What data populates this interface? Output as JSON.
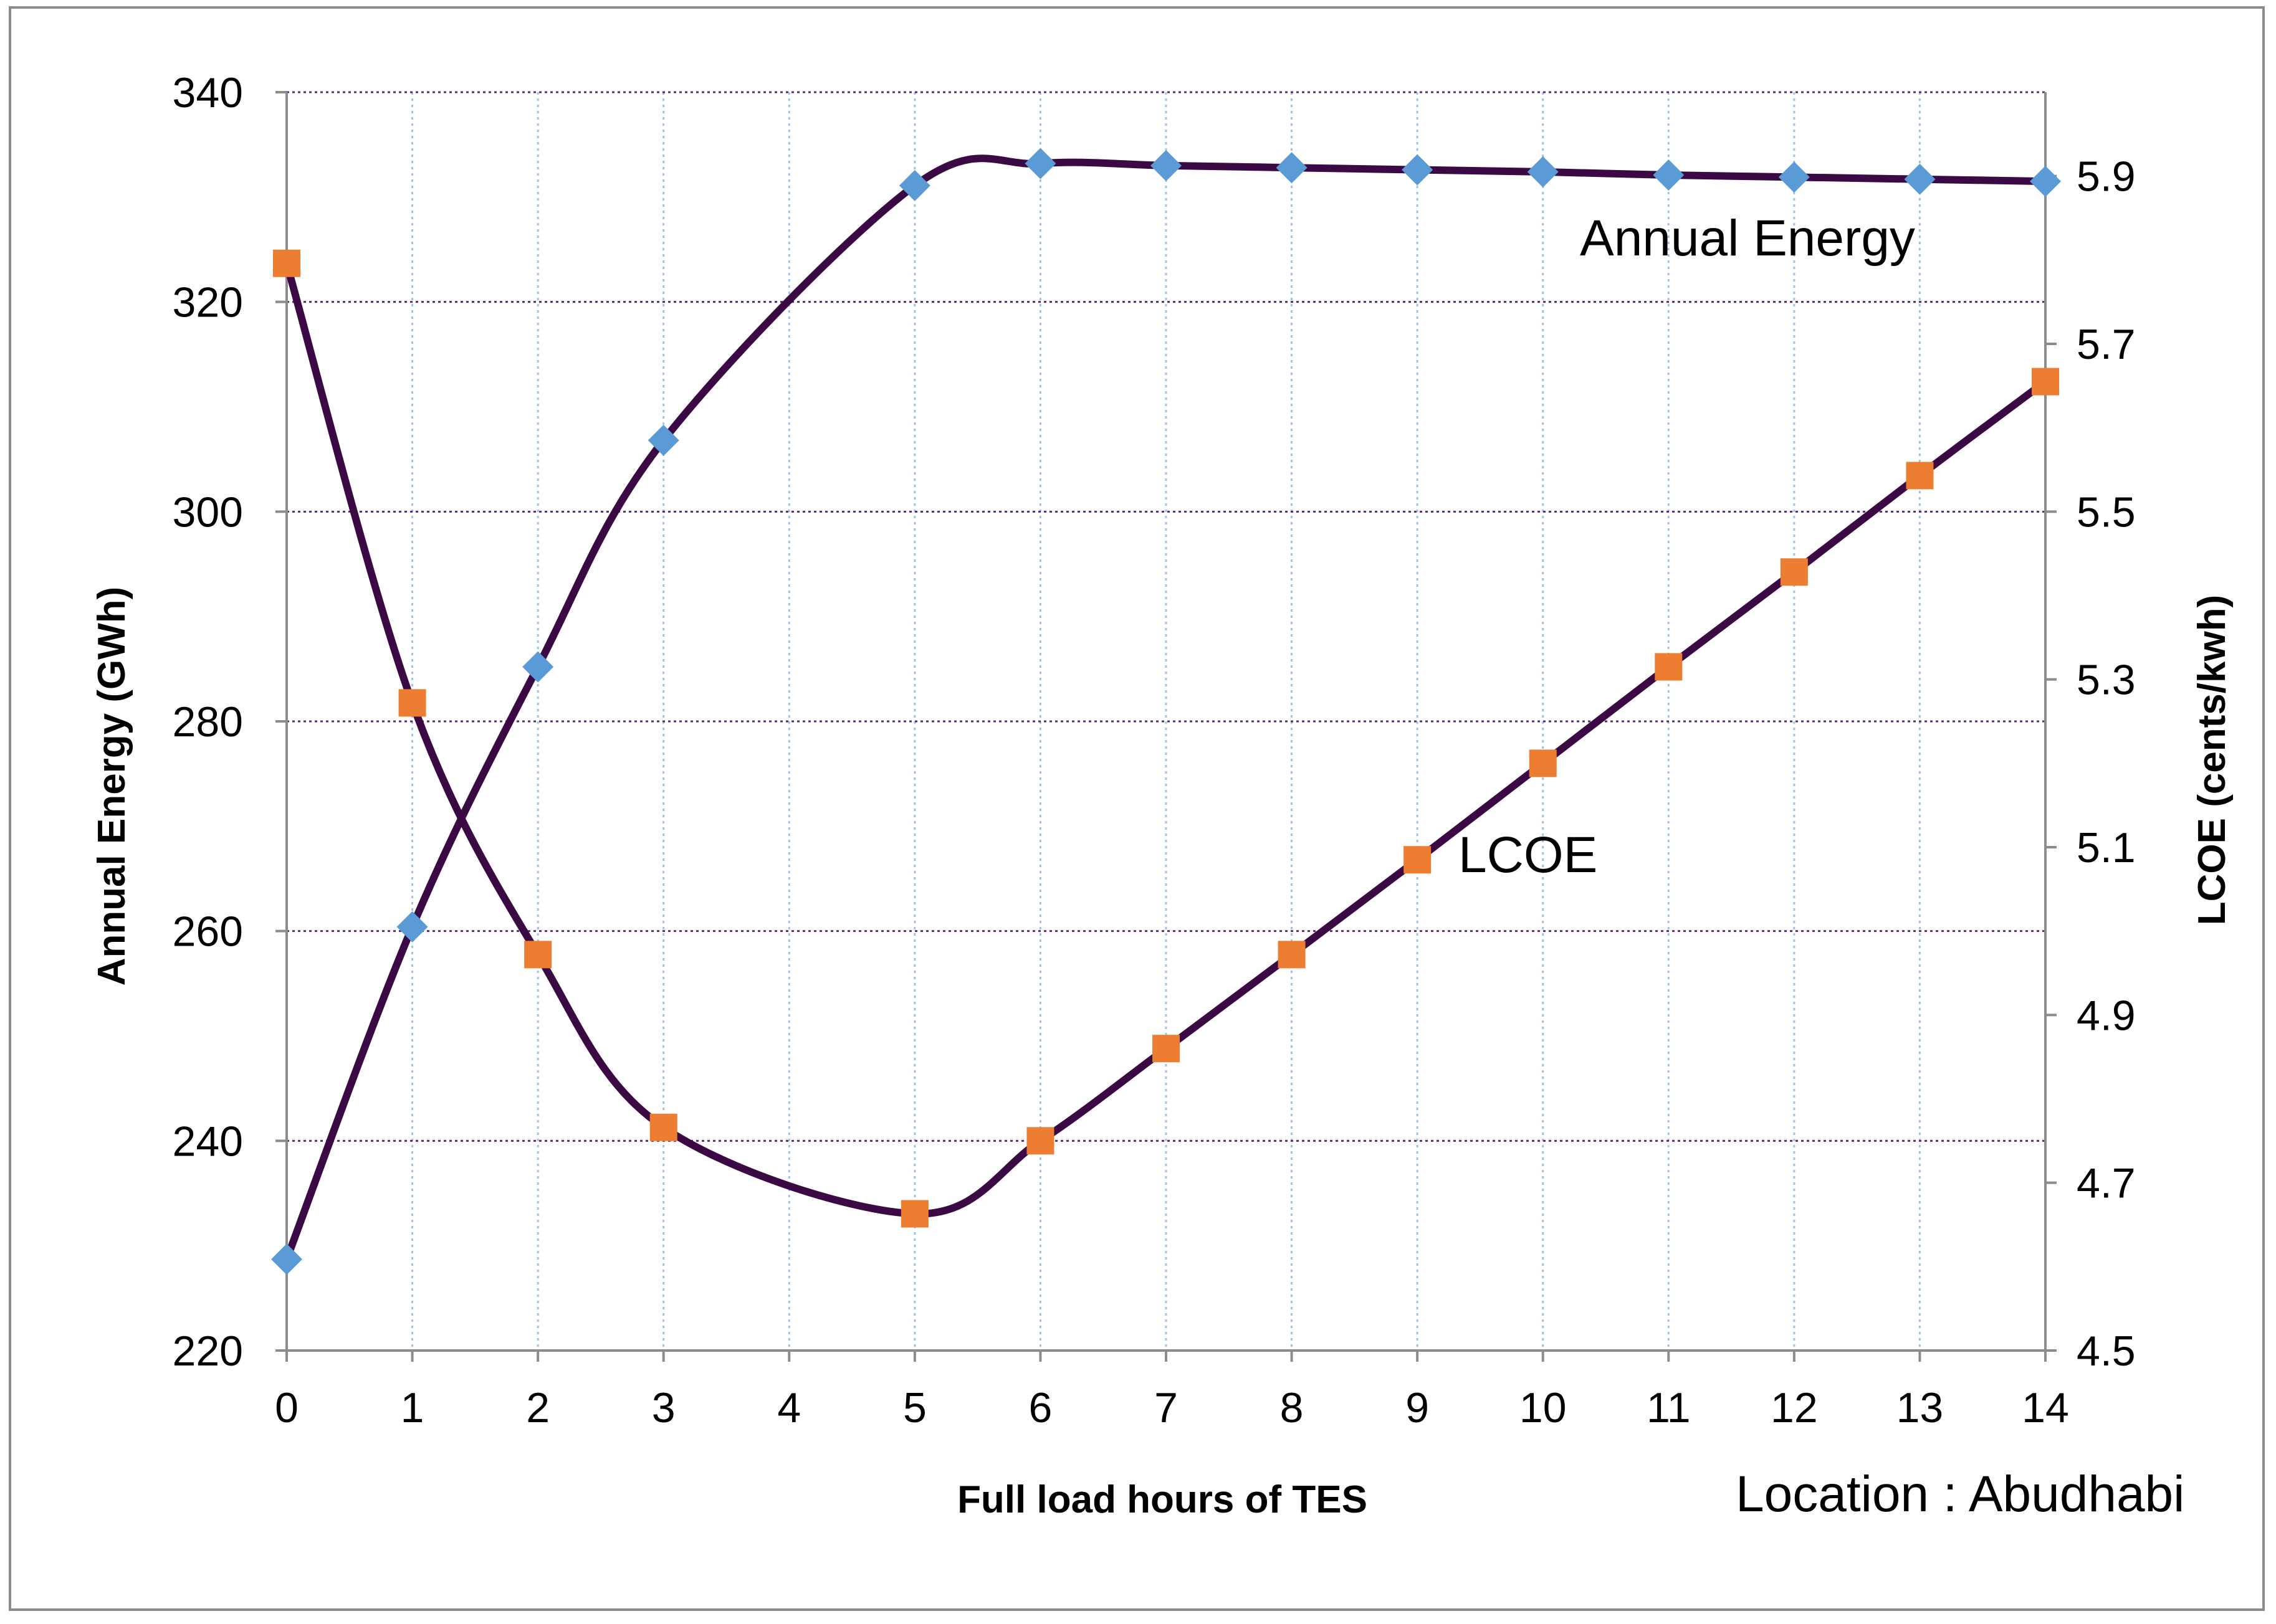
{
  "chart_data": {
    "type": "line",
    "title": "",
    "xlabel": "Full load hours of TES",
    "ylabel": "Annual Energy (GWh)",
    "y2label": "LCOE (cents/kwh)",
    "x": [
      0,
      1,
      2,
      3,
      4,
      5,
      6,
      7,
      8,
      9,
      10,
      11,
      12,
      13,
      14
    ],
    "xlim": [
      0,
      14
    ],
    "ylim": [
      220,
      340
    ],
    "y2lim": [
      4.5,
      6.0
    ],
    "y_ticks": [
      220,
      240,
      260,
      280,
      300,
      320,
      340
    ],
    "y2_ticks": [
      4.5,
      4.7,
      4.9,
      5.1,
      5.3,
      5.5,
      5.7,
      5.9
    ],
    "grid": true,
    "series": [
      {
        "name": "Annual Energy",
        "axis": "left",
        "marker": "diamond",
        "marker_color": "#5b9bd5",
        "line_color": "#3b0a45",
        "x": [
          0,
          1,
          2,
          3,
          5,
          6,
          7,
          8,
          9,
          10,
          11,
          12,
          13,
          14
        ],
        "values": [
          228.7,
          260.4,
          285.2,
          306.8,
          331.1,
          333.2,
          333.0,
          332.8,
          332.6,
          332.4,
          332.1,
          331.9,
          331.7,
          331.5
        ]
      },
      {
        "name": "LCOE",
        "axis": "right",
        "marker": "square",
        "marker_color": "#ed7d31",
        "line_color": "#3b0a45",
        "x": [
          0,
          1,
          2,
          3,
          5,
          6,
          7,
          8,
          9,
          10,
          11,
          12,
          13,
          14
        ],
        "values": [
          5.796,
          5.272,
          4.972,
          4.766,
          4.663,
          4.75,
          4.86,
          4.972,
          5.085,
          5.2,
          5.315,
          5.428,
          5.543,
          5.655
        ]
      }
    ],
    "annotations": {
      "energy": "Annual Energy",
      "lcoe": "LCOE",
      "location": "Location : Abudhabi"
    }
  }
}
